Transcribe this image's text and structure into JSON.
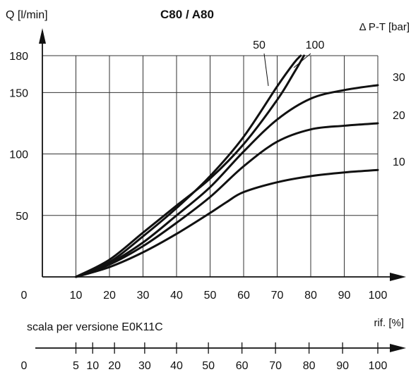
{
  "chart_data": {
    "type": "line",
    "title": "C80 / A80",
    "ylabel": "Q [l/min]",
    "series_label": "Δ P-T [bar]",
    "xlabel": "rif. [%]",
    "xlim": [
      0,
      100
    ],
    "ylim": [
      0,
      180
    ],
    "grid": true,
    "x_ticks": [
      0,
      10,
      20,
      30,
      40,
      50,
      60,
      70,
      80,
      90,
      100
    ],
    "y_ticks": [
      0,
      50,
      100,
      150,
      180
    ],
    "series": [
      {
        "name": "10",
        "x": [
          10,
          20,
          30,
          40,
          50,
          55,
          60,
          70,
          80,
          90,
          100
        ],
        "y": [
          0,
          8,
          20,
          35,
          52,
          61,
          69,
          77,
          82,
          85,
          87
        ]
      },
      {
        "name": "20",
        "x": [
          10,
          20,
          30,
          40,
          50,
          60,
          70,
          80,
          90,
          100
        ],
        "y": [
          0,
          10,
          25,
          44,
          65,
          90,
          110,
          120,
          123,
          125
        ]
      },
      {
        "name": "30",
        "x": [
          10,
          20,
          30,
          40,
          50,
          60,
          70,
          80,
          90,
          100
        ],
        "y": [
          0,
          11,
          28,
          50,
          73,
          102,
          128,
          145,
          152,
          156
        ]
      },
      {
        "name": "50",
        "x": [
          10,
          20,
          30,
          40,
          50,
          60,
          70,
          75,
          77
        ],
        "y": [
          0,
          12,
          33,
          56,
          82,
          114,
          155,
          174,
          180
        ]
      },
      {
        "name": "100",
        "x": [
          10,
          20,
          30,
          40,
          50,
          60,
          70,
          75,
          78
        ],
        "y": [
          0,
          14,
          36,
          58,
          80,
          108,
          144,
          166,
          180
        ]
      }
    ],
    "scale_caption": "scala per versione E0K11C",
    "scale_ticks": [
      {
        "label": "0",
        "ref": 0
      },
      {
        "label": "5",
        "ref": 10
      },
      {
        "label": "10",
        "ref": 15
      },
      {
        "label": "20",
        "ref": 21.5
      },
      {
        "label": "30",
        "ref": 30.5
      },
      {
        "label": "40",
        "ref": 40
      },
      {
        "label": "50",
        "ref": 49.5
      },
      {
        "label": "60",
        "ref": 59.5
      },
      {
        "label": "70",
        "ref": 69.5
      },
      {
        "label": "80",
        "ref": 79.5
      },
      {
        "label": "90",
        "ref": 89.5
      },
      {
        "label": "100",
        "ref": 100
      }
    ]
  }
}
